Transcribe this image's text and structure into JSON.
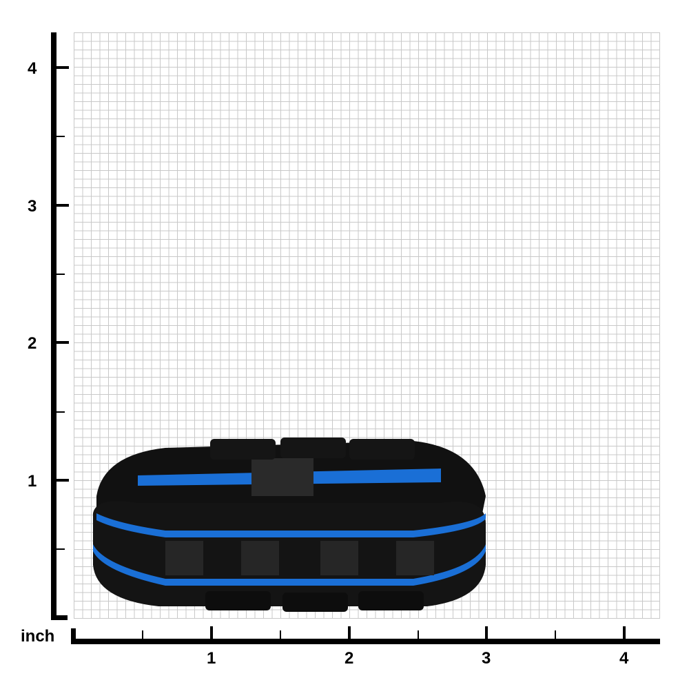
{
  "unit_label": "inch",
  "y_ticks": [
    "4",
    "3",
    "2",
    "1"
  ],
  "x_ticks": [
    "1",
    "2",
    "3",
    "4"
  ],
  "product": {
    "colors": {
      "body": "#111111",
      "accent": "#1a6fd6",
      "carbon": "#222222"
    }
  }
}
